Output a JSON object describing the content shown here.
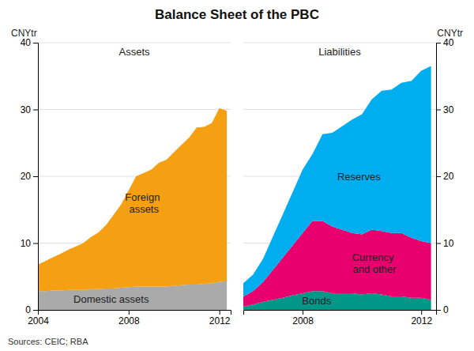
{
  "chart_data": [
    {
      "type": "area",
      "title": "Balance Sheet of the PBC",
      "subtitle": "Assets",
      "ylabel": "CNYtr",
      "stacked": true,
      "grid": true,
      "x": [
        2004,
        2004.33,
        2004.67,
        2005,
        2005.33,
        2005.67,
        2006,
        2006.33,
        2006.67,
        2007,
        2007.33,
        2007.67,
        2008,
        2008.33,
        2008.67,
        2009,
        2009.33,
        2009.67,
        2010,
        2010.33,
        2010.67,
        2011,
        2011.33,
        2011.67,
        2012,
        2012.33
      ],
      "series": [
        {
          "name": "Domestic assets",
          "color": "#AAAAAA",
          "values": [
            2.8,
            2.8,
            2.9,
            2.9,
            3.0,
            3.0,
            3.0,
            3.1,
            3.1,
            3.2,
            3.2,
            3.3,
            3.4,
            3.5,
            3.5,
            3.5,
            3.5,
            3.5,
            3.6,
            3.7,
            3.8,
            3.8,
            3.9,
            4.0,
            4.2,
            4.3
          ]
        },
        {
          "name": "Foreign\nassets",
          "color": "#F5A012",
          "values": [
            4.0,
            4.5,
            5.0,
            5.5,
            6.0,
            6.5,
            7.0,
            7.8,
            8.5,
            9.5,
            11.0,
            12.5,
            14.5,
            16.5,
            17.0,
            17.5,
            18.5,
            19.0,
            20.0,
            21.0,
            22.0,
            23.5,
            23.5,
            24.0,
            26.0,
            25.5
          ]
        }
      ],
      "xlim": [
        2004,
        2012.5
      ],
      "xticks": [
        2004,
        2008,
        2012
      ],
      "ylim": [
        0,
        40
      ],
      "yticks": [
        0,
        10,
        20,
        30,
        40
      ],
      "annotations": [
        "Sources: CEIC; RBA"
      ]
    },
    {
      "type": "area",
      "subtitle": "Liabilities",
      "ylabel": "CNYtr",
      "stacked": true,
      "grid": true,
      "x": [
        2006,
        2006.33,
        2006.67,
        2007,
        2007.33,
        2007.67,
        2008,
        2008.33,
        2008.67,
        2009,
        2009.33,
        2009.67,
        2010,
        2010.33,
        2010.67,
        2011,
        2011.33,
        2011.67,
        2012,
        2012.33
      ],
      "series": [
        {
          "name": "Bonds",
          "color": "#009688",
          "values": [
            0.5,
            0.8,
            1.2,
            1.5,
            1.8,
            2.2,
            2.5,
            2.8,
            2.8,
            2.5,
            2.5,
            2.5,
            2.3,
            2.5,
            2.3,
            2.0,
            2.0,
            1.8,
            1.8,
            1.5
          ]
        },
        {
          "name": "Currency\nand other",
          "color": "#E8006E",
          "values": [
            1.5,
            2.0,
            3.0,
            4.5,
            6.0,
            7.5,
            9.0,
            10.5,
            10.5,
            10.0,
            9.5,
            9.0,
            9.0,
            9.5,
            9.5,
            9.5,
            9.5,
            9.0,
            8.5,
            8.5
          ]
        },
        {
          "name": "Reserves",
          "color": "#00AEEF",
          "values": [
            2.0,
            2.5,
            3.5,
            5.0,
            6.5,
            8.0,
            9.5,
            10.0,
            13.0,
            14.0,
            15.5,
            17.0,
            18.0,
            19.5,
            21.0,
            21.5,
            22.5,
            23.5,
            25.5,
            26.5
          ]
        }
      ],
      "xlim": [
        2006,
        2012.5
      ],
      "xticks": [
        2008,
        2012
      ],
      "ylim": [
        0,
        40
      ],
      "yticks": [
        0,
        10,
        20,
        30,
        40
      ]
    }
  ]
}
